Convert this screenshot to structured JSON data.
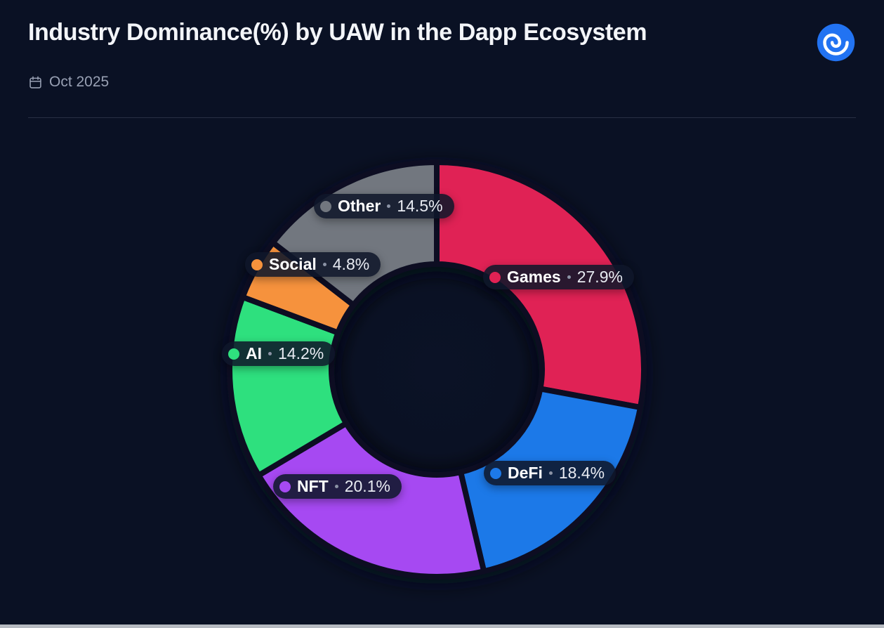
{
  "header": {
    "title": "Industry Dominance(%) by UAW in the Dapp Ecosystem",
    "date_label": "Oct 2025"
  },
  "branding": {
    "logo_name": "dappradar-logo"
  },
  "colors": {
    "background": "#0a1124",
    "pill_background": "rgba(15,23,42,0.88)",
    "logo_blue": "#2273f2",
    "muted_text": "#98a0b3"
  },
  "chart_data": {
    "type": "pie",
    "donut": true,
    "title": "Industry Dominance(%) by UAW in the Dapp Ecosystem",
    "period": "Oct 2025",
    "unit": "%",
    "start_angle_deg": 0,
    "direction": "clockwise",
    "legend_position": "on-chart",
    "segments": [
      {
        "label": "Games",
        "value": 27.9,
        "color": "#e02254"
      },
      {
        "label": "DeFi",
        "value": 18.4,
        "color": "#1d79e8"
      },
      {
        "label": "NFT",
        "value": 20.1,
        "color": "#a64af2"
      },
      {
        "label": "AI",
        "value": 14.2,
        "color": "#2fe07e"
      },
      {
        "label": "Social",
        "value": 4.8,
        "color": "#f6923c"
      },
      {
        "label": "Other",
        "value": 14.5,
        "color": "#72777f"
      }
    ]
  }
}
